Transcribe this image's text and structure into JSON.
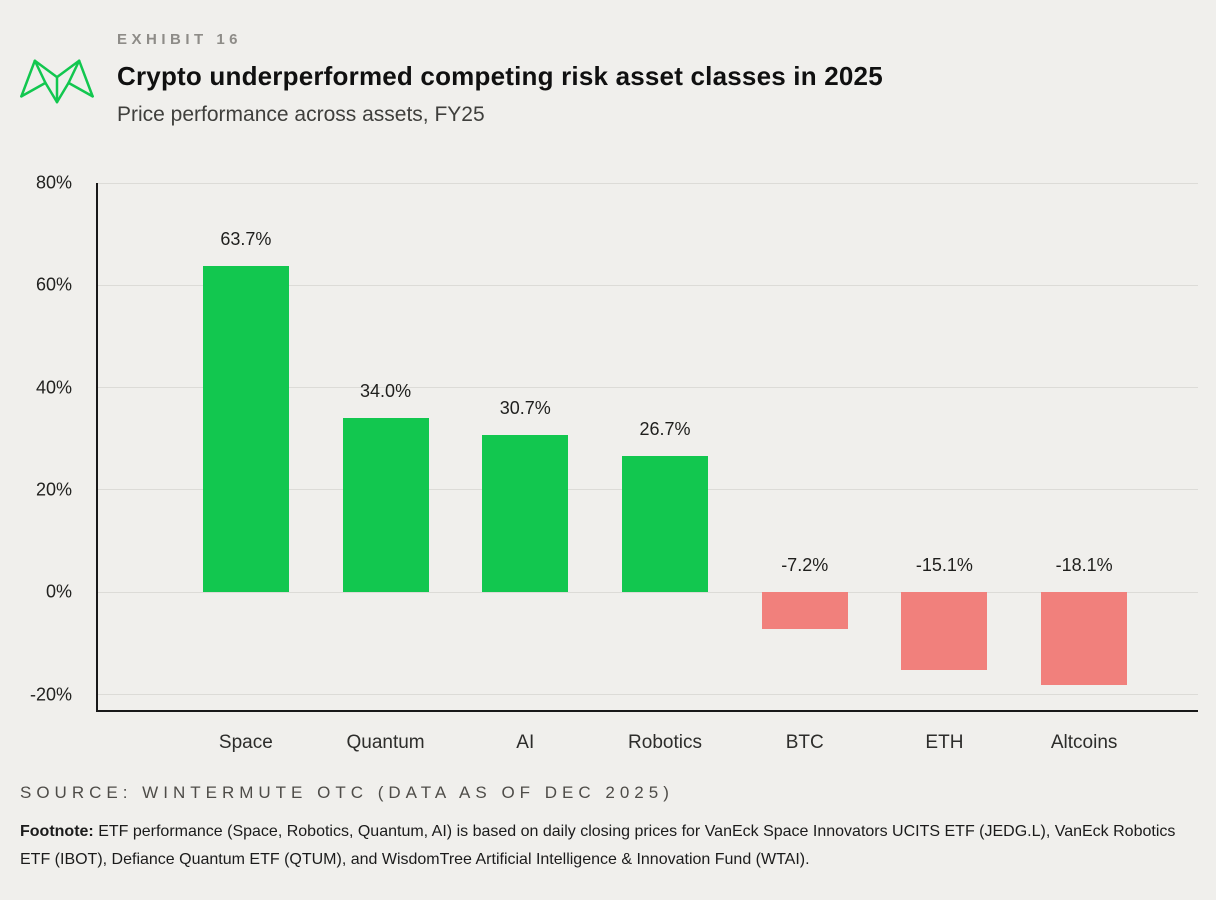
{
  "page": {
    "exhibit_label": "EXHIBIT 16",
    "title": "Crypto underperformed competing risk asset classes in 2025",
    "subtitle": "Price performance across assets, FY25",
    "source": "SOURCE: WINTERMUTE OTC (DATA AS OF DEC 2025)",
    "footnote_label": "Footnote:",
    "footnote_text": " ETF performance (Space, Robotics, Quantum, AI) is based on daily closing prices for VanEck Space Innovators UCITS ETF (JEDG.L), VanEck Robotics ETF (IBOT), Defiance Quantum ETF (QTUM), and WisdomTree Artificial Intelligence & Innovation Fund (WTAI)."
  },
  "colors": {
    "positive": "#12C74F",
    "negative": "#F1807C",
    "background": "#F0EFEC",
    "axis": "#191919",
    "gridline": "#DCDBD7"
  },
  "chart_data": {
    "type": "bar",
    "title": "Crypto underperformed competing risk asset classes in 2025",
    "subtitle": "Price performance across assets, FY25",
    "categories": [
      "Space",
      "Quantum",
      "AI",
      "Robotics",
      "BTC",
      "ETH",
      "Altcoins"
    ],
    "values": [
      63.7,
      34.0,
      30.7,
      26.7,
      -7.2,
      -15.1,
      -18.1
    ],
    "value_labels": [
      "63.7%",
      "34.0%",
      "30.7%",
      "26.7%",
      "-7.2%",
      "-15.1%",
      "-18.1%"
    ],
    "xlabel": "",
    "ylabel": "",
    "yticks": [
      80,
      60,
      40,
      20,
      0,
      -20
    ],
    "ytick_labels": [
      "80%",
      "60%",
      "40%",
      "20%",
      "0%",
      "-20%"
    ],
    "ylim": [
      -23,
      80
    ],
    "grid": true,
    "legend": false,
    "bar_colors": "green for positive values, salmon red for negative values"
  }
}
